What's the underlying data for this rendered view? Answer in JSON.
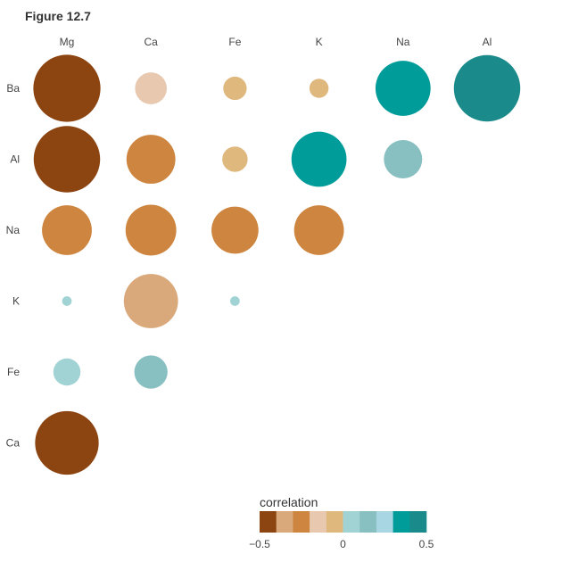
{
  "figure_title": "Figure 12.7",
  "colors": {
    "bins": [
      "#8c4411",
      "#d9a97c",
      "#cd853f",
      "#e8c9b0",
      "#dfb87e",
      "#a1d3d4",
      "#88bfc0",
      "#a8d6e3",
      "#009c9a",
      "#1a8a8a"
    ]
  },
  "chart_data": {
    "type": "heatmap",
    "subtype": "correlation bubble matrix (lower triangle)",
    "x_labels": [
      "Mg",
      "Ca",
      "Fe",
      "K",
      "Na",
      "Al"
    ],
    "y_labels": [
      "Ba",
      "Al",
      "Na",
      "K",
      "Fe",
      "Ca"
    ],
    "cells": [
      {
        "x": "Mg",
        "y": "Ba",
        "value": -0.49
      },
      {
        "x": "Ca",
        "y": "Ba",
        "value": -0.11
      },
      {
        "x": "Fe",
        "y": "Ba",
        "value": -0.06
      },
      {
        "x": "K",
        "y": "Ba",
        "value": -0.04
      },
      {
        "x": "Na",
        "y": "Ba",
        "value": 0.33
      },
      {
        "x": "Al",
        "y": "Ba",
        "value": 0.48
      },
      {
        "x": "Mg",
        "y": "Al",
        "value": -0.48
      },
      {
        "x": "Ca",
        "y": "Al",
        "value": -0.26
      },
      {
        "x": "Fe",
        "y": "Al",
        "value": -0.07
      },
      {
        "x": "K",
        "y": "Al",
        "value": 0.33
      },
      {
        "x": "Na",
        "y": "Al",
        "value": 0.16
      },
      {
        "x": "Mg",
        "y": "Na",
        "value": -0.27
      },
      {
        "x": "Ca",
        "y": "Na",
        "value": -0.28
      },
      {
        "x": "Fe",
        "y": "Na",
        "value": -0.24
      },
      {
        "x": "K",
        "y": "Na",
        "value": -0.27
      },
      {
        "x": "Mg",
        "y": "K",
        "value": 0.01
      },
      {
        "x": "Ca",
        "y": "K",
        "value": -0.32
      },
      {
        "x": "Fe",
        "y": "K",
        "value": 0.01
      },
      {
        "x": "Mg",
        "y": "Fe",
        "value": 0.08
      },
      {
        "x": "Ca",
        "y": "Fe",
        "value": 0.12
      },
      {
        "x": "Mg",
        "y": "Ca",
        "value": -0.44
      }
    ],
    "legend": {
      "title": "correlation",
      "range": [
        -0.5,
        0.5
      ],
      "tick_values": [
        -0.5,
        0,
        0.5
      ],
      "tick_labels": [
        "−0.5",
        "0",
        "0.5"
      ]
    }
  }
}
